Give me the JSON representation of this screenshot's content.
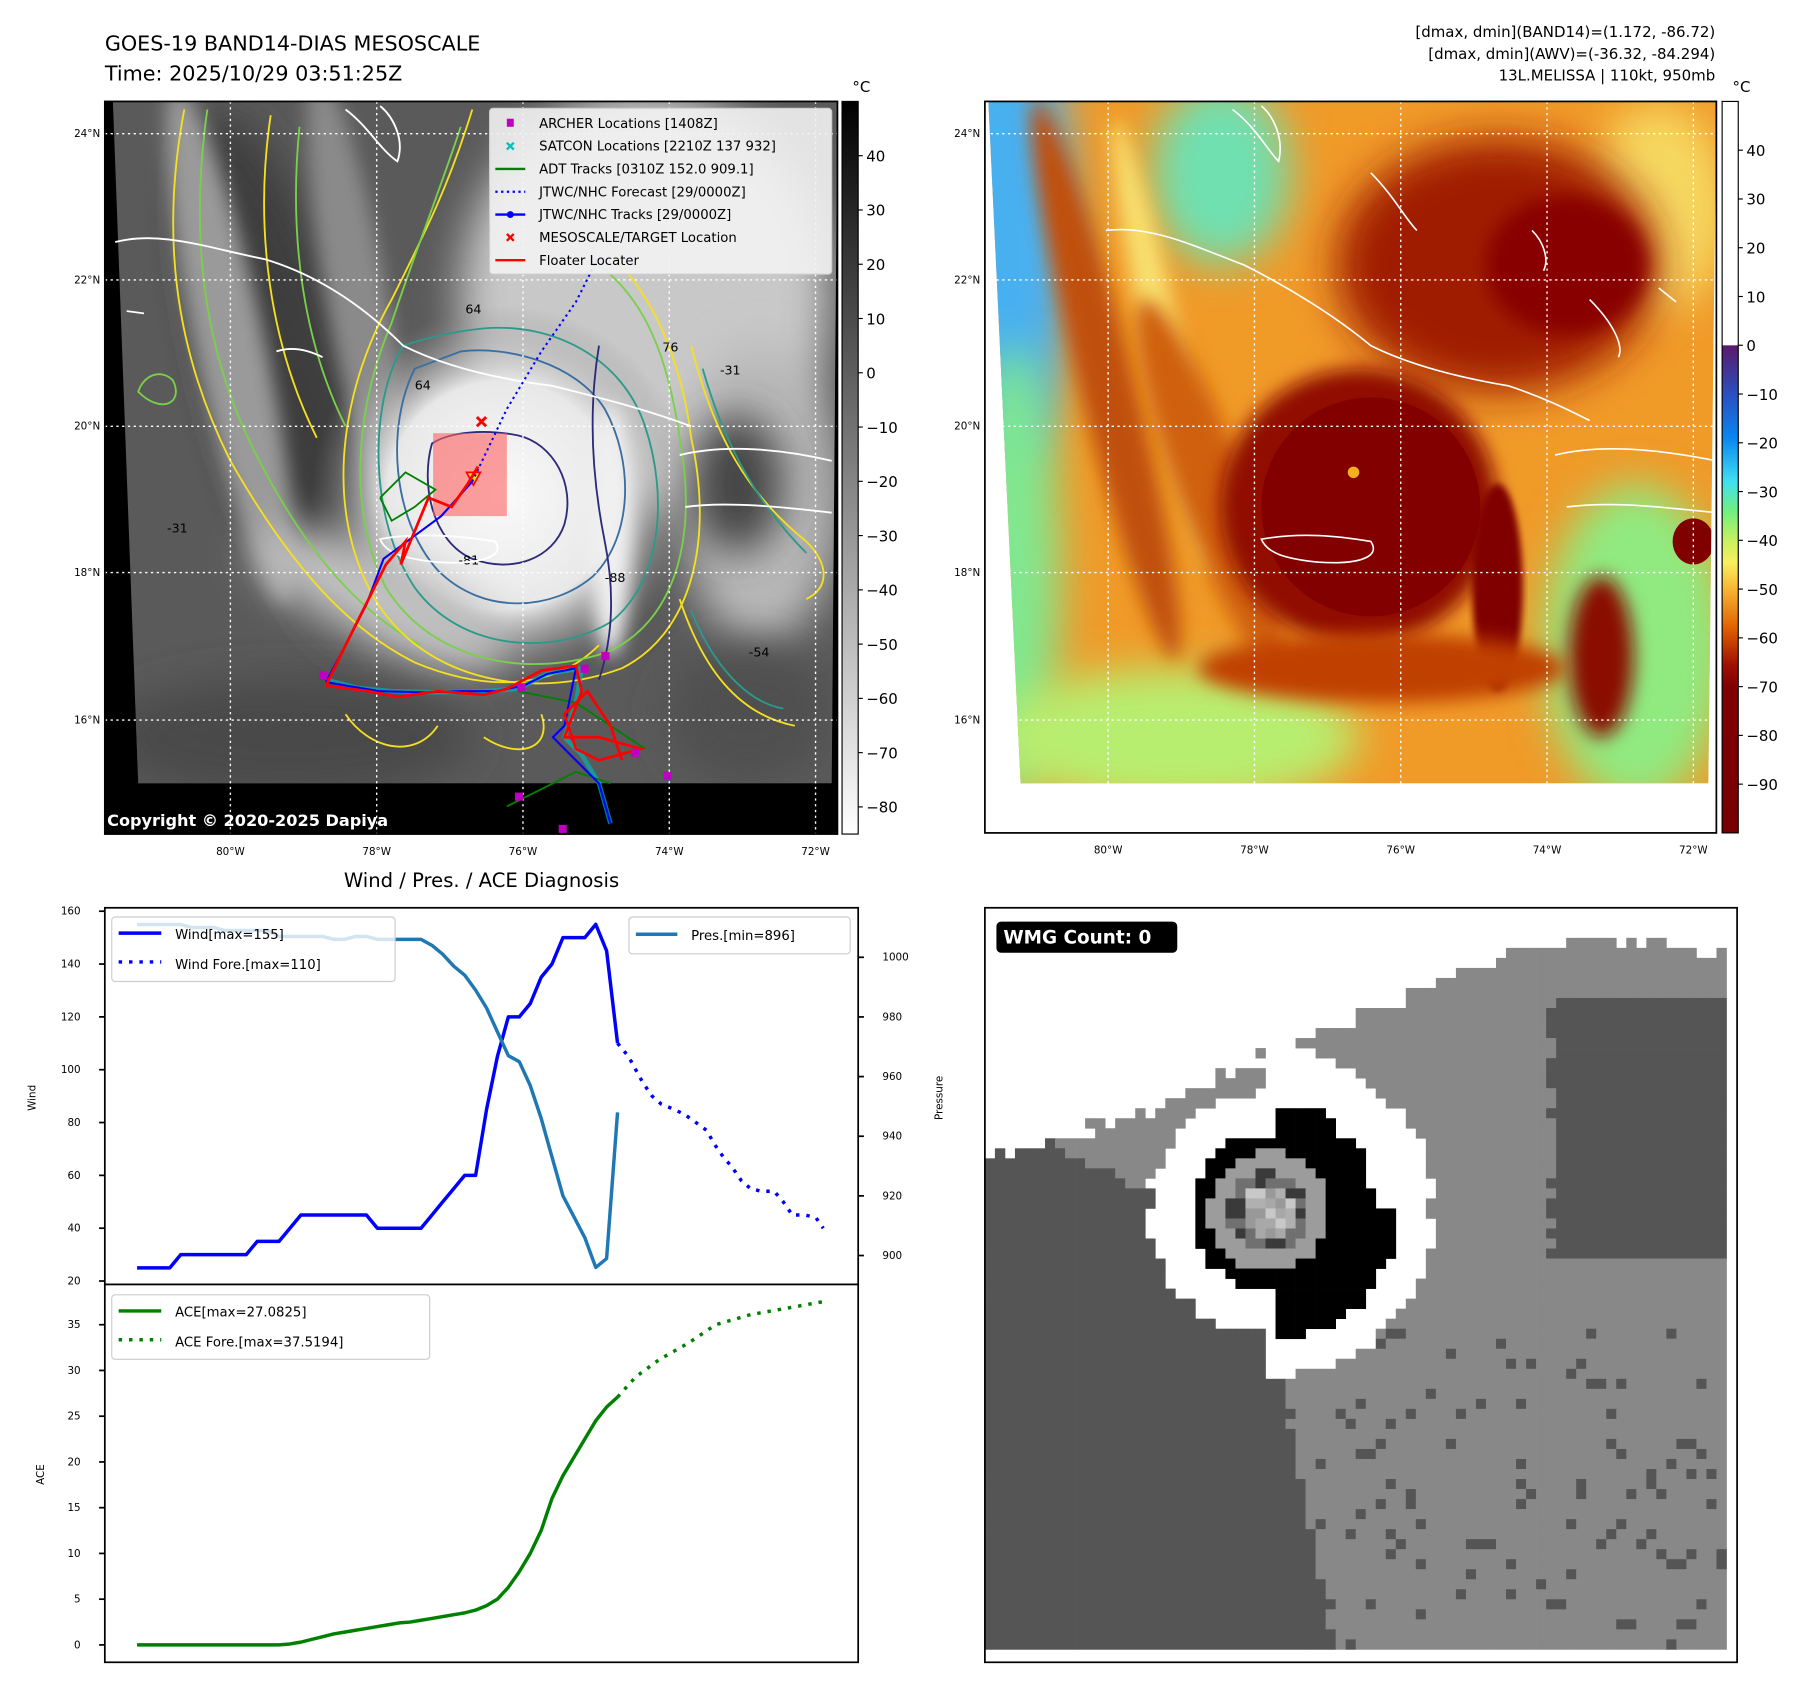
{
  "panel1": {
    "title_line1": "GOES-19 BAND14-DIAS MESOSCALE",
    "title_line2": "Time: 2025/10/29 03:51:25Z",
    "colorbar_unit": "°C",
    "colorbar_ticks": [
      "40",
      "30",
      "20",
      "10",
      "0",
      "−10",
      "−20",
      "−30",
      "−40",
      "−50",
      "−60",
      "−70",
      "−80"
    ],
    "colorbar_values": [
      40,
      30,
      20,
      10,
      0,
      -10,
      -20,
      -30,
      -40,
      -50,
      -60,
      -70,
      -80
    ],
    "colorbar_range": [
      -85,
      50
    ],
    "lat_ticks": [
      "24°N",
      "22°N",
      "20°N",
      "18°N",
      "16°N"
    ],
    "lon_ticks": [
      "80°W",
      "78°W",
      "76°W",
      "74°W",
      "72°W"
    ],
    "contour_labels": [
      "64",
      "76",
      "64",
      "-31",
      "-31",
      "-54",
      "-81",
      "-88"
    ],
    "copyright": "Copyright © 2020-2025 Dapiya",
    "legend": [
      {
        "label": "ARCHER Locations [1408Z]",
        "color": "#c000c0",
        "marker": "square"
      },
      {
        "label": "SATCON Locations [2210Z 137 932]",
        "color": "#00c0c0",
        "marker": "x"
      },
      {
        "label": "ADT Tracks [0310Z 152.0 909.1]",
        "color": "#008000",
        "marker": "line"
      },
      {
        "label": "JTWC/NHC Forecast [29/0000Z]",
        "color": "#0000ff",
        "marker": "dotted"
      },
      {
        "label": "JTWC/NHC Tracks [29/0000Z]",
        "color": "#0000ff",
        "marker": "line-dot"
      },
      {
        "label": "MESOSCALE/TARGET Location",
        "color": "#ff0000",
        "marker": "x"
      },
      {
        "label": "Floater Locater",
        "color": "#ff0000",
        "marker": "line"
      }
    ]
  },
  "panel2": {
    "info_line1": "[dmax, dmin](BAND14)=(1.172, -86.72)",
    "info_line2": "[dmax, dmin](AWV)=(-36.32, -84.294)",
    "info_line3": "13L.MELISSA | 110kt, 950mb",
    "colorbar_unit": "°C",
    "colorbar_ticks": [
      "40",
      "30",
      "20",
      "10",
      "0",
      "−10",
      "−20",
      "−30",
      "−40",
      "−50",
      "−60",
      "−70",
      "−80",
      "−90"
    ],
    "colorbar_values": [
      40,
      30,
      20,
      10,
      0,
      -10,
      -20,
      -30,
      -40,
      -50,
      -60,
      -70,
      -80,
      -90
    ],
    "colorbar_range": [
      -100,
      50
    ],
    "lat_ticks": [
      "24°N",
      "22°N",
      "20°N",
      "18°N",
      "16°N"
    ],
    "lon_ticks": [
      "80°W",
      "78°W",
      "76°W",
      "74°W",
      "72°W"
    ]
  },
  "panel4": {
    "badge": "WMG Count: 0"
  },
  "chart_data": [
    {
      "type": "line",
      "title": "Wind / Pres. / ACE Diagnosis",
      "ylabel": "Wind",
      "ylabel_right": "Pressure",
      "ylim": [
        18.7,
        161.3
      ],
      "ylim_right": [
        890.3,
        1016.6
      ],
      "yticks": [
        20,
        40,
        60,
        80,
        100,
        120,
        140,
        160
      ],
      "yticks_right": [
        900,
        920,
        940,
        960,
        980,
        1000
      ],
      "x_unit": "hours",
      "legend": [
        "Wind[max=155]",
        "Wind Fore.[max=110]",
        "Pres.[min=896]"
      ],
      "series": [
        {
          "name": "Wind",
          "color": "#0000ff",
          "style": "solid",
          "x_step": 6,
          "values": [
            25,
            25,
            25,
            25,
            30,
            30,
            30,
            30,
            30,
            30,
            30,
            35,
            35,
            35,
            40,
            45,
            45,
            45,
            45,
            45,
            45,
            45,
            40,
            40,
            40,
            40,
            40,
            45,
            50,
            55,
            60,
            60,
            85,
            105,
            120,
            120,
            125,
            135,
            140,
            150,
            150,
            150,
            155,
            145,
            110
          ]
        },
        {
          "name": "Wind Fore.",
          "color": "#0000ff",
          "style": "dotted",
          "points": [
            [
              264,
              110
            ],
            [
              270,
              105
            ],
            [
              274,
              100
            ],
            [
              278,
              95
            ],
            [
              283,
              90
            ],
            [
              288,
              87
            ],
            [
              295,
              85
            ],
            [
              301,
              83
            ],
            [
              307,
              80
            ],
            [
              313,
              77
            ],
            [
              317,
              72
            ],
            [
              322,
              67
            ],
            [
              327,
              63
            ],
            [
              332,
              58
            ],
            [
              337,
              55
            ],
            [
              343,
              54
            ],
            [
              350,
              54
            ],
            [
              355,
              50
            ],
            [
              360,
              45
            ],
            [
              367,
              45
            ],
            [
              373,
              44
            ],
            [
              377,
              40
            ]
          ]
        },
        {
          "name": "Pres.",
          "color": "#1f77b4",
          "style": "solid",
          "axis": "right",
          "x_step": 6,
          "values": [
            1011,
            1011,
            1011,
            1011,
            1011,
            1010,
            1010,
            1010,
            1009,
            1009,
            1009,
            1009,
            1009,
            1007,
            1007,
            1007,
            1007,
            1007,
            1006,
            1006,
            1007,
            1007,
            1006,
            1006,
            1006,
            1006,
            1006,
            1004,
            1001,
            997,
            994,
            989,
            983,
            975,
            967,
            965,
            957,
            946,
            933,
            920,
            913,
            906,
            896,
            899,
            948
          ]
        }
      ]
    },
    {
      "type": "line",
      "ylabel": "ACE",
      "ylim": [
        -1.9,
        39.4
      ],
      "yticks": [
        0,
        5,
        10,
        15,
        20,
        25,
        30,
        35
      ],
      "legend": [
        "ACE[max=27.0825]",
        "ACE Fore.[max=37.5194]"
      ],
      "series": [
        {
          "name": "ACE",
          "color": "#008000",
          "style": "solid",
          "x_step": 6,
          "values": [
            0,
            0,
            0,
            0,
            0,
            0,
            0,
            0,
            0,
            0,
            0,
            0,
            0,
            0,
            0.1,
            0.3,
            0.6,
            0.9,
            1.2,
            1.4,
            1.6,
            1.8,
            2.0,
            2.2,
            2.4,
            2.5,
            2.7,
            2.9,
            3.1,
            3.3,
            3.5,
            3.8,
            4.3,
            5.0,
            6.3,
            8.0,
            10.0,
            12.5,
            16.0,
            18.5,
            20.5,
            22.5,
            24.5,
            26.0,
            27.08
          ]
        },
        {
          "name": "ACE Fore.",
          "color": "#008000",
          "style": "dotted",
          "points": [
            [
              264,
              27.08
            ],
            [
              274,
              29.3
            ],
            [
              287,
              31.2
            ],
            [
              303,
              33.0
            ],
            [
              318,
              35.0
            ],
            [
              337,
              36.1
            ],
            [
              357,
              36.8
            ],
            [
              377,
              37.52
            ]
          ]
        }
      ]
    }
  ]
}
